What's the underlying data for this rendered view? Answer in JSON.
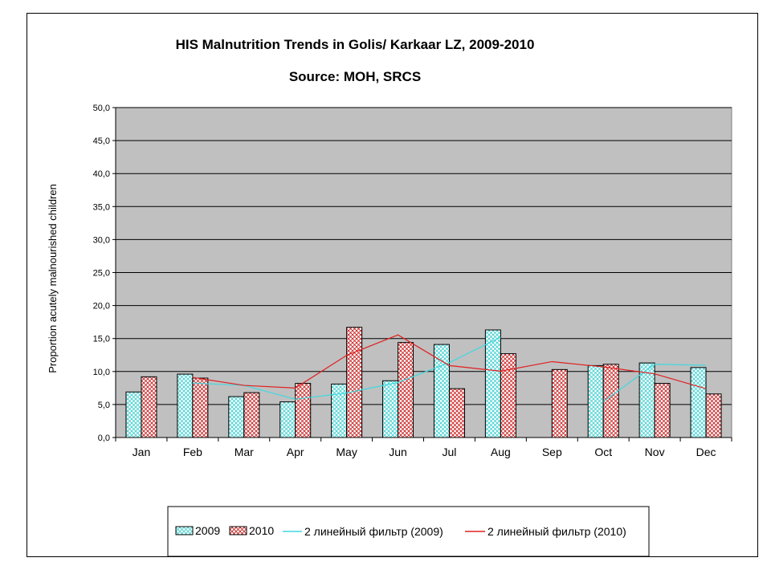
{
  "chart_data": {
    "type": "bar",
    "title": "HIS Malnutrition Trends in Golis/ Karkaar LZ, 2009-2010",
    "subtitle": "Source: MOH, SRCS",
    "ylabel": "Proportion acutely  malnourished children",
    "xlabel": "",
    "ylim": [
      0,
      50
    ],
    "y_ticks": [
      "0,0",
      "5,0",
      "10,0",
      "15,0",
      "20,0",
      "25,0",
      "30,0",
      "35,0",
      "40,0",
      "45,0",
      "50,0"
    ],
    "categories": [
      "Jan",
      "Feb",
      "Mar",
      "Apr",
      "May",
      "Jun",
      "Jul",
      "Aug",
      "Sep",
      "Oct",
      "Nov",
      "Dec"
    ],
    "series": [
      {
        "name": "2009",
        "values": [
          6.9,
          9.6,
          6.2,
          5.4,
          8.1,
          8.6,
          14.1,
          16.3,
          null,
          10.9,
          11.3,
          10.6
        ]
      },
      {
        "name": "2010",
        "values": [
          9.2,
          9.0,
          6.8,
          8.2,
          16.7,
          14.4,
          7.4,
          12.7,
          10.3,
          11.1,
          8.2,
          6.6
        ]
      }
    ],
    "trendlines": [
      {
        "name": "2 линейный фильтр (2009)",
        "values": [
          null,
          8.25,
          7.9,
          5.8,
          6.75,
          8.35,
          11.35,
          15.2,
          null,
          5.45,
          11.1,
          10.95
        ]
      },
      {
        "name": "2 линейный фильтр (2010)",
        "values": [
          null,
          9.1,
          7.9,
          7.5,
          12.45,
          15.55,
          10.9,
          10.05,
          11.5,
          10.7,
          9.65,
          7.4
        ]
      }
    ],
    "grid": true,
    "legend_position": "bottom",
    "colors": {
      "plot_background": "#c0c0c0",
      "series_2009_hatch": "#40d0d0",
      "series_2010_hatch": "#c82020",
      "trend_2009": "#40d8e0",
      "trend_2010": "#e02020"
    }
  }
}
